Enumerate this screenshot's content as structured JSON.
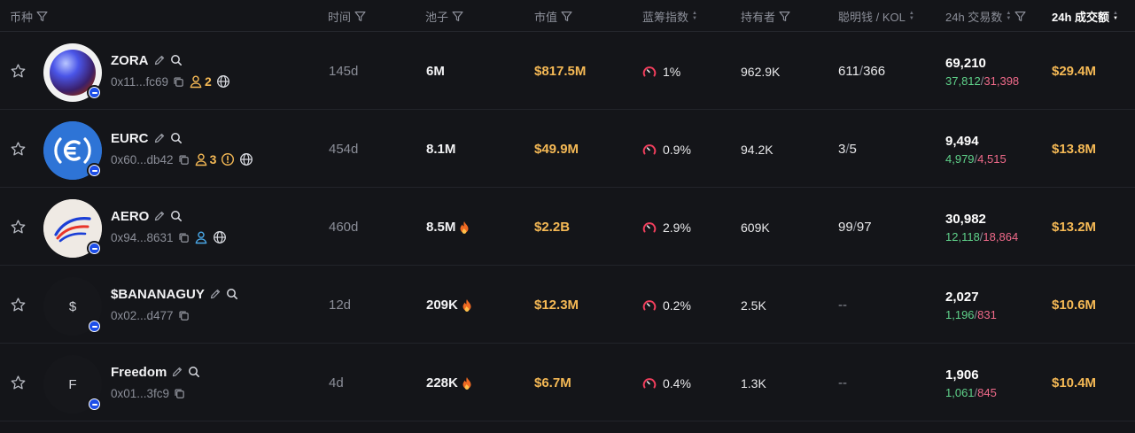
{
  "header": {
    "coin": "币种",
    "age": "时间",
    "pool": "池子",
    "mcap": "市值",
    "blue_chip": "蓝筹指数",
    "holders": "持有者",
    "smart_kol": "聪明钱 / KOL",
    "tx24": "24h 交易数",
    "vol24": "24h 成交额"
  },
  "colors": {
    "accent": "#f5b955",
    "buy": "#5fd28a",
    "sell": "#f06a8a",
    "chain": "#1d4ee8"
  },
  "rows": [
    {
      "symbol": "ZORA",
      "address": "0x11...fc69",
      "holder_badge": "2",
      "age": "145d",
      "pool": "6M",
      "mcap": "$817.5M",
      "blue_chip": "1%",
      "holders": "962.9K",
      "smart": "611",
      "kol": "366",
      "tx_total": "69,210",
      "tx_buy": "37,812",
      "tx_sell": "31,398",
      "volume": "$29.4M"
    },
    {
      "symbol": "EURC",
      "address": "0x60...db42",
      "holder_badge": "3",
      "age": "454d",
      "pool": "8.1M",
      "mcap": "$49.9M",
      "blue_chip": "0.9%",
      "holders": "94.2K",
      "smart": "3",
      "kol": "5",
      "tx_total": "9,494",
      "tx_buy": "4,979",
      "tx_sell": "4,515",
      "volume": "$13.8M"
    },
    {
      "symbol": "AERO",
      "address": "0x94...8631",
      "age": "460d",
      "pool": "8.5M",
      "mcap": "$2.2B",
      "blue_chip": "2.9%",
      "holders": "609K",
      "smart": "99",
      "kol": "97",
      "tx_total": "30,982",
      "tx_buy": "12,118",
      "tx_sell": "18,864",
      "volume": "$13.2M"
    },
    {
      "symbol": "$BANANAGUY",
      "avatar_letter": "$",
      "address": "0x02...d477",
      "age": "12d",
      "pool": "209K",
      "mcap": "$12.3M",
      "blue_chip": "0.2%",
      "holders": "2.5K",
      "smart_empty": "--",
      "tx_total": "2,027",
      "tx_buy": "1,196",
      "tx_sell": "831",
      "volume": "$10.6M"
    },
    {
      "symbol": "Freedom",
      "avatar_letter": "F",
      "address": "0x01...3fc9",
      "age": "4d",
      "pool": "228K",
      "mcap": "$6.7M",
      "blue_chip": "0.4%",
      "holders": "1.3K",
      "smart_empty": "--",
      "tx_total": "1,906",
      "tx_buy": "1,061",
      "tx_sell": "845",
      "volume": "$10.4M"
    }
  ]
}
